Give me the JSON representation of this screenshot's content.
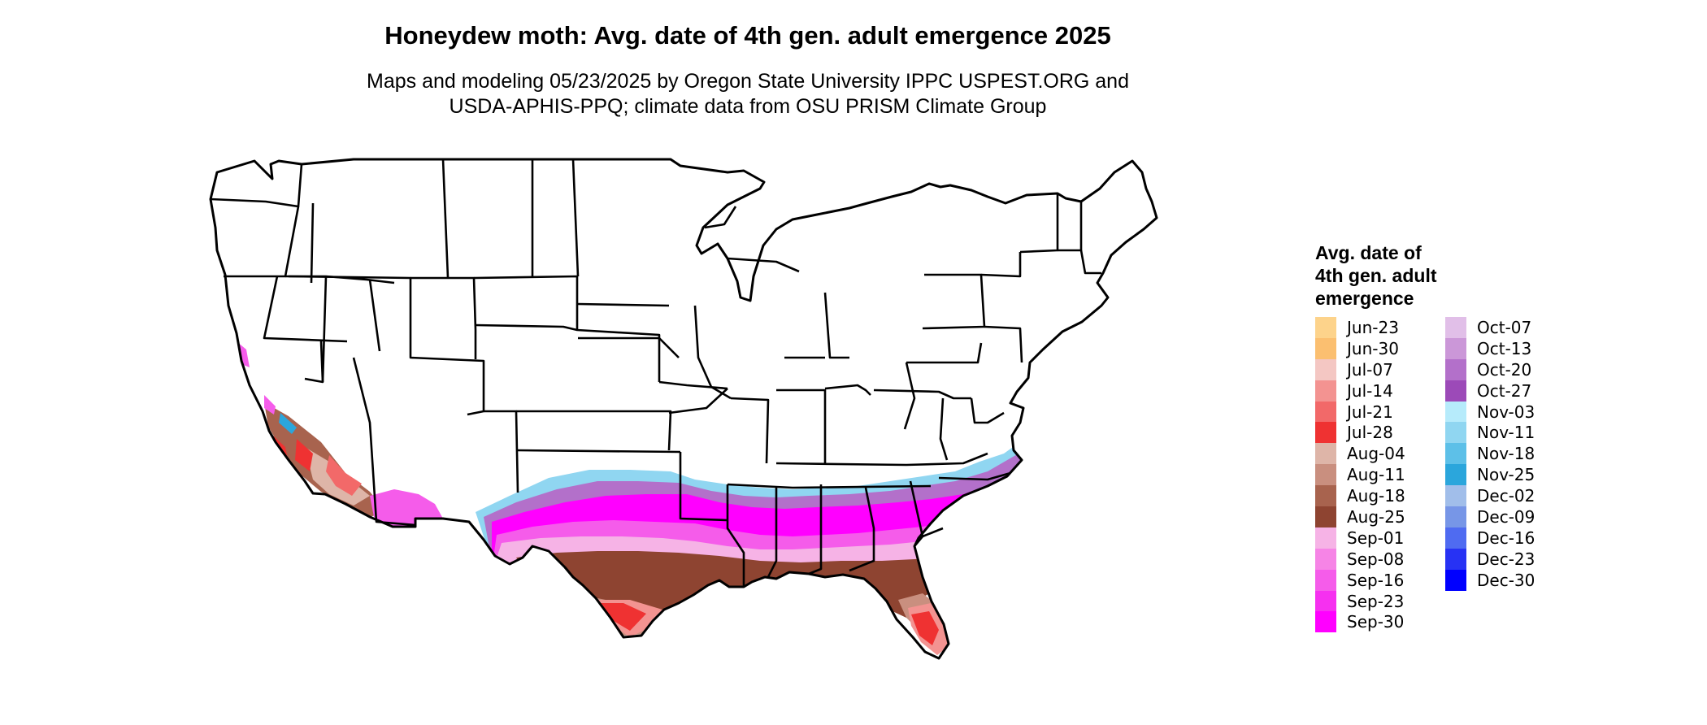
{
  "map": {
    "title": "Honeydew moth: Avg. date of 4th gen. adult emergence 2025",
    "subtitle_line1": "Maps and modeling 05/23/2025 by Oregon State University IPPC USPEST.ORG and",
    "subtitle_line2": "USDA-APHIS-PPQ; climate data from OSU PRISM Climate Group",
    "region": "Continental United States",
    "state_boundaries": true
  },
  "legend": {
    "title_lines": [
      "Avg. date of",
      "4th gen. adult",
      "emergence"
    ],
    "columns": [
      [
        {
          "label": "Jun-23",
          "color": "#FDD38B"
        },
        {
          "label": "Jun-30",
          "color": "#FBBF70"
        },
        {
          "label": "Jul-07",
          "color": "#F4C7C3"
        },
        {
          "label": "Jul-14",
          "color": "#F39391"
        },
        {
          "label": "Jul-21",
          "color": "#F26969"
        },
        {
          "label": "Jul-28",
          "color": "#EF3232"
        },
        {
          "label": "Aug-04",
          "color": "#DEB5A8"
        },
        {
          "label": "Aug-11",
          "color": "#C98F7F"
        },
        {
          "label": "Aug-18",
          "color": "#A8634E"
        },
        {
          "label": "Aug-25",
          "color": "#8E4431"
        },
        {
          "label": "Sep-01",
          "color": "#F6B3E6"
        },
        {
          "label": "Sep-08",
          "color": "#F684E6"
        },
        {
          "label": "Sep-16",
          "color": "#F55CEA"
        },
        {
          "label": "Sep-23",
          "color": "#F630F0"
        },
        {
          "label": "Sep-30",
          "color": "#FF00FF"
        }
      ],
      [
        {
          "label": "Oct-07",
          "color": "#E1BFE8"
        },
        {
          "label": "Oct-13",
          "color": "#CB97D8"
        },
        {
          "label": "Oct-20",
          "color": "#B370CA"
        },
        {
          "label": "Oct-27",
          "color": "#9C4AB8"
        },
        {
          "label": "Nov-03",
          "color": "#B6EBFB"
        },
        {
          "label": "Nov-11",
          "color": "#90D6F1"
        },
        {
          "label": "Nov-18",
          "color": "#5DC0E8"
        },
        {
          "label": "Nov-25",
          "color": "#2BA6DC"
        },
        {
          "label": "Dec-02",
          "color": "#A1BEEA"
        },
        {
          "label": "Dec-09",
          "color": "#7796E7"
        },
        {
          "label": "Dec-16",
          "color": "#4F6BF1"
        },
        {
          "label": "Dec-23",
          "color": "#2732F4"
        },
        {
          "label": "Dec-30",
          "color": "#0000FF"
        }
      ]
    ]
  }
}
